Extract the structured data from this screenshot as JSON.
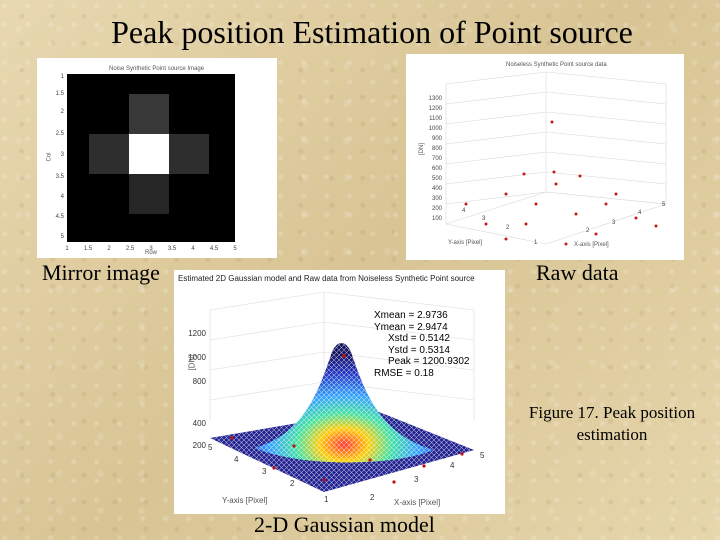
{
  "slide": {
    "title": "Peak position Estimation of Point source",
    "captions": {
      "mirror": "Mirror image",
      "raw": "Raw data",
      "model": "2-D Gaussian model",
      "figure": "Figure 17. Peak position estimation"
    }
  },
  "mirror_plot": {
    "title": "Noise Synthetic Point source Image",
    "xlabel": "Row",
    "ylabel": "Col"
  },
  "raw_plot": {
    "title": "Noiseless Synthetic Point source data",
    "xlabel": "X-axis [Pixel]",
    "ylabel": "Y-axis [Pixel]",
    "zlabel": "[DN]"
  },
  "model_plot": {
    "title": "Estimated 2D Gaussian model and Raw data from Noiseless Synthetic Point source",
    "xlabel": "X-axis [Pixel]",
    "ylabel": "Y-axis [Pixel]",
    "zlabel": "[DN]",
    "stats": [
      "Xmean = 2.9736",
      "Ymean = 2.9474",
      "Xstd = 0.5142",
      "Ystd = 0.5314",
      "Peak = 1200.9302",
      "RMSE = 0.18"
    ]
  }
}
